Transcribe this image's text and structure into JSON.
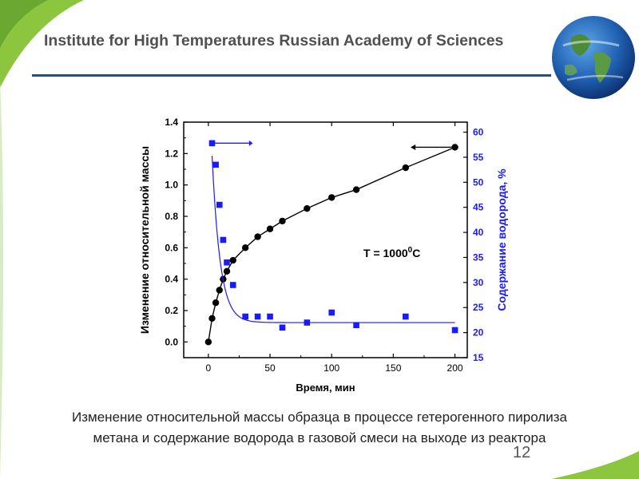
{
  "header": {
    "title": "Institute for High Temperatures Russian Academy of Sciences"
  },
  "caption": {
    "line1": "Изменение относительной массы образца в процессе гетерогенного пиролиза",
    "line2": "метана и содержание водорода в газовой смеси  на выходе из реактора"
  },
  "page_number": "12",
  "colors": {
    "header_rule": "#1a4f9c",
    "green_accent": "#7dc242",
    "mass_series": "#000000",
    "hydrogen_series": "#1a1aff"
  },
  "chart_data": {
    "type": "scatter",
    "xlabel": "Время, мин",
    "ylabel_left": "Изменение относительной массы",
    "ylabel_right": "Содержание водорода, %",
    "annotation": {
      "text": "T = 1000",
      "sup": "0",
      "suffix": "C"
    },
    "xlim": [
      -20,
      210
    ],
    "ylim_left": [
      -0.1,
      1.4
    ],
    "ylim_right": [
      15,
      62
    ],
    "x_ticks": [
      0,
      50,
      100,
      150,
      200
    ],
    "y_ticks_left": [
      "0.0",
      "0.2",
      "0.4",
      "0.6",
      "0.8",
      "1.0",
      "1.2",
      "1.4"
    ],
    "y_ticks_right": [
      "15",
      "20",
      "25",
      "30",
      "35",
      "40",
      "45",
      "50",
      "55",
      "60"
    ],
    "series": [
      {
        "axis": "left",
        "marker": "circle",
        "x": [
          0,
          3,
          6,
          9,
          12,
          15,
          20,
          30,
          40,
          50,
          60,
          80,
          100,
          120,
          160,
          200
        ],
        "values": [
          0.0,
          0.15,
          0.25,
          0.33,
          0.4,
          0.45,
          0.52,
          0.6,
          0.67,
          0.72,
          0.77,
          0.85,
          0.92,
          0.97,
          1.11,
          1.24
        ]
      },
      {
        "axis": "right",
        "marker": "square",
        "x": [
          3,
          6,
          9,
          12,
          15,
          20,
          30,
          40,
          50,
          60,
          80,
          100,
          120,
          160,
          200
        ],
        "values": [
          57.8,
          53.5,
          45.5,
          38.5,
          34,
          29.5,
          23.2,
          23.2,
          23.2,
          21,
          22,
          24,
          21.5,
          23.2,
          20.5
        ]
      }
    ]
  }
}
